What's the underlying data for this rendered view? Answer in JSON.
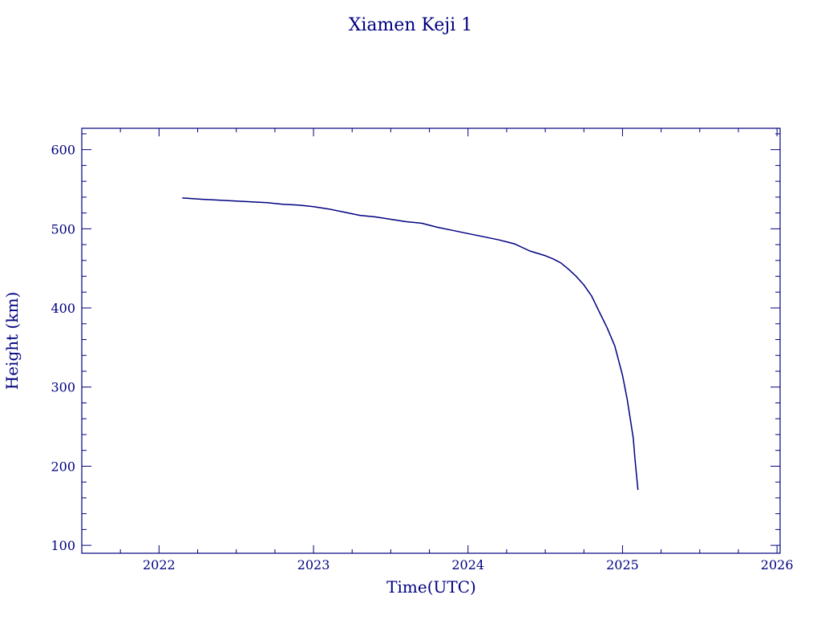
{
  "colors": {
    "ink": "#000080",
    "background": "#ffffff"
  },
  "chart_data": {
    "type": "line",
    "title": "Xiamen Keji 1",
    "xlabel": "Time(UTC)",
    "ylabel": "Height (km)",
    "xlim": [
      2021.5,
      2026.02
    ],
    "ylim": [
      90,
      627
    ],
    "x_ticks": [
      2022,
      2023,
      2024,
      2025,
      2026
    ],
    "x_tick_labels": [
      "2022",
      "2023",
      "2024",
      "2025",
      "2026"
    ],
    "y_ticks": [
      100,
      200,
      300,
      400,
      500,
      600
    ],
    "y_tick_labels": [
      "100",
      "200",
      "300",
      "400",
      "500",
      "600"
    ],
    "grid": false,
    "legend": "none",
    "series": [
      {
        "x": [
          2022.15,
          2022.3,
          2022.5,
          2022.7,
          2022.8,
          2022.9,
          2023.0,
          2023.1,
          2023.2,
          2023.3,
          2023.4,
          2023.5,
          2023.6,
          2023.7,
          2023.8,
          2023.9,
          2024.0,
          2024.1,
          2024.2,
          2024.3,
          2024.4,
          2024.5,
          2024.55,
          2024.6,
          2024.65,
          2024.7,
          2024.75,
          2024.8,
          2024.85,
          2024.9,
          2024.95,
          2025.0,
          2025.03,
          2025.05,
          2025.07,
          2025.08,
          2025.09,
          2025.1
        ],
        "y": [
          539,
          537,
          535,
          533,
          531,
          530,
          528,
          525,
          521,
          517,
          515,
          512,
          509,
          507,
          502,
          498,
          494,
          490,
          486,
          481,
          472,
          466,
          462,
          457,
          449,
          440,
          429,
          415,
          395,
          375,
          352,
          315,
          285,
          260,
          235,
          210,
          190,
          170
        ]
      }
    ]
  }
}
